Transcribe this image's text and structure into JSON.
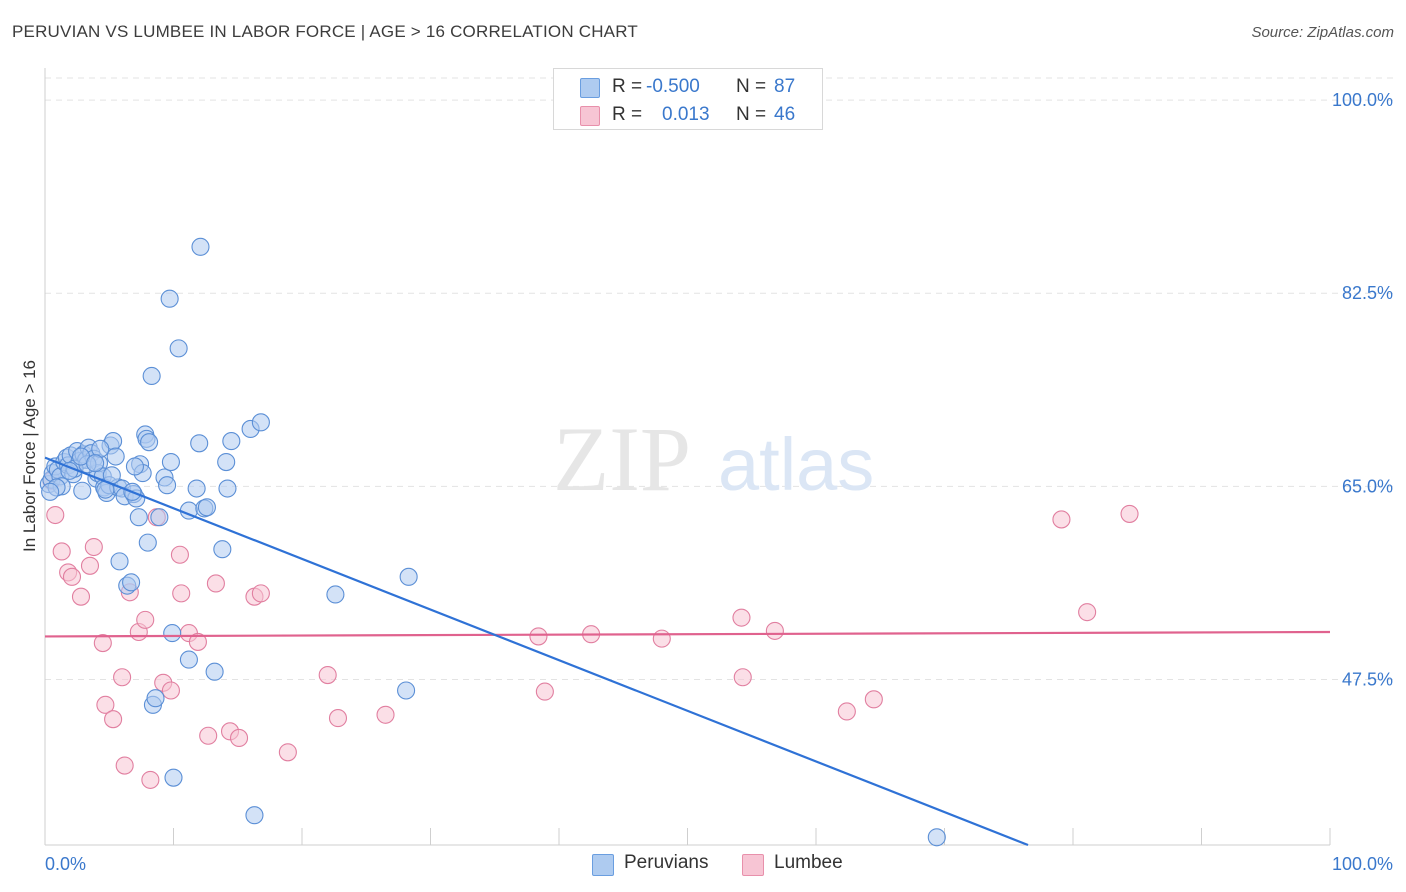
{
  "title": "PERUVIAN VS LUMBEE IN LABOR FORCE | AGE > 16 CORRELATION CHART",
  "source": "Source: ZipAtlas.com",
  "watermark": {
    "zip": "ZIP",
    "atlas": "atlas"
  },
  "stats": [
    {
      "r_label": "R =",
      "r_value": "-0.500",
      "n_label": "N =",
      "n_value": "87",
      "color": "#aecbf0",
      "border": "#6a9ee0"
    },
    {
      "r_label": "R =",
      "r_value": "0.013",
      "n_label": "N =",
      "n_value": "46",
      "color": "#f7c5d4",
      "border": "#e890ab"
    }
  ],
  "legend": [
    {
      "label": "Peruvians",
      "color": "#aecbf0",
      "border": "#6a9ee0"
    },
    {
      "label": "Lumbee",
      "color": "#f7c5d4",
      "border": "#e890ab"
    }
  ],
  "chart_data": {
    "type": "scatter",
    "title": "PERUVIAN VS LUMBEE IN LABOR FORCE | AGE > 16 CORRELATION CHART",
    "xlabel": "",
    "ylabel": "In Labor Force | Age > 16",
    "xlim": [
      0,
      100
    ],
    "ylim": [
      32.5,
      102
    ],
    "x_tick_labels": [
      "0.0%",
      "100.0%"
    ],
    "y_ticks": [
      47.5,
      65.0,
      82.5,
      100.0
    ],
    "y_tick_labels": [
      "47.5%",
      "65.0%",
      "82.5%",
      "100.0%"
    ],
    "grid": "horizontal dashed",
    "colors": {
      "peruvians_fill": "#aecbf0",
      "peruvians_edge": "#5b8fd6",
      "peruvians_line": "#2f72d6",
      "lumbee_fill": "#f7c5d4",
      "lumbee_edge": "#e17fa0",
      "lumbee_line": "#e0628e",
      "tick_label": "#3a78cc"
    },
    "series": [
      {
        "name": "Peruvians",
        "regression": {
          "x": [
            0,
            76.5
          ],
          "y": [
            67.6,
            32.5
          ]
        },
        "points": [
          [
            0.3,
            65.2
          ],
          [
            0.5,
            65.6
          ],
          [
            0.6,
            66.2
          ],
          [
            0.8,
            66.8
          ],
          [
            1.0,
            66.5
          ],
          [
            1.2,
            65.9
          ],
          [
            1.5,
            67.2
          ],
          [
            1.7,
            67.6
          ],
          [
            1.8,
            66.9
          ],
          [
            2.0,
            67.8
          ],
          [
            2.2,
            66.1
          ],
          [
            2.5,
            68.2
          ],
          [
            2.7,
            67.3
          ],
          [
            2.9,
            64.6
          ],
          [
            3.0,
            67.9
          ],
          [
            3.2,
            67.4
          ],
          [
            3.4,
            68.5
          ],
          [
            3.6,
            68.0
          ],
          [
            3.8,
            67.5
          ],
          [
            4.0,
            65.7
          ],
          [
            4.1,
            66.2
          ],
          [
            4.2,
            67.1
          ],
          [
            4.5,
            65.9
          ],
          [
            4.6,
            64.9
          ],
          [
            4.8,
            64.4
          ],
          [
            5.0,
            65.1
          ],
          [
            5.1,
            68.7
          ],
          [
            5.3,
            69.1
          ],
          [
            5.5,
            67.7
          ],
          [
            5.7,
            64.9
          ],
          [
            5.8,
            58.2
          ],
          [
            6.0,
            64.8
          ],
          [
            6.2,
            64.1
          ],
          [
            6.4,
            56.0
          ],
          [
            6.7,
            56.3
          ],
          [
            6.9,
            64.3
          ],
          [
            7.1,
            63.9
          ],
          [
            7.3,
            62.2
          ],
          [
            7.4,
            67.0
          ],
          [
            7.6,
            66.2
          ],
          [
            7.8,
            69.7
          ],
          [
            7.9,
            69.3
          ],
          [
            8.0,
            59.9
          ],
          [
            8.1,
            69.0
          ],
          [
            8.4,
            45.2
          ],
          [
            8.6,
            45.8
          ],
          [
            8.9,
            62.2
          ],
          [
            9.3,
            65.8
          ],
          [
            9.5,
            65.1
          ],
          [
            9.8,
            67.2
          ],
          [
            9.9,
            51.7
          ],
          [
            10.0,
            38.6
          ],
          [
            9.7,
            82.0
          ],
          [
            10.4,
            77.5
          ],
          [
            8.3,
            75.0
          ],
          [
            11.2,
            49.3
          ],
          [
            11.2,
            62.8
          ],
          [
            11.8,
            64.8
          ],
          [
            12.0,
            68.9
          ],
          [
            12.1,
            86.7
          ],
          [
            12.4,
            63.0
          ],
          [
            12.6,
            63.1
          ],
          [
            13.2,
            48.2
          ],
          [
            13.8,
            59.3
          ],
          [
            14.1,
            67.2
          ],
          [
            14.2,
            64.8
          ],
          [
            14.5,
            69.1
          ],
          [
            16.0,
            70.2
          ],
          [
            16.3,
            35.2
          ],
          [
            16.8,
            70.8
          ],
          [
            22.6,
            55.2
          ],
          [
            28.3,
            56.8
          ],
          [
            28.1,
            46.5
          ],
          [
            69.4,
            33.2
          ],
          [
            1.3,
            65.0
          ],
          [
            2.3,
            66.6
          ],
          [
            3.3,
            67.0
          ],
          [
            4.3,
            68.4
          ],
          [
            5.2,
            66.0
          ],
          [
            6.8,
            64.5
          ],
          [
            7.0,
            66.8
          ],
          [
            0.9,
            64.9
          ],
          [
            1.9,
            66.4
          ],
          [
            2.8,
            67.7
          ],
          [
            3.9,
            67.1
          ],
          [
            4.7,
            64.7
          ],
          [
            0.4,
            64.5
          ]
        ]
      },
      {
        "name": "Lumbee",
        "regression": {
          "x": [
            0,
            100
          ],
          "y": [
            51.4,
            51.8
          ]
        },
        "points": [
          [
            0.8,
            62.4
          ],
          [
            1.3,
            59.1
          ],
          [
            1.8,
            57.2
          ],
          [
            2.1,
            56.8
          ],
          [
            2.8,
            55.0
          ],
          [
            3.5,
            57.8
          ],
          [
            3.8,
            59.5
          ],
          [
            4.5,
            50.8
          ],
          [
            4.7,
            45.2
          ],
          [
            5.3,
            43.9
          ],
          [
            6.0,
            47.7
          ],
          [
            6.2,
            39.7
          ],
          [
            6.6,
            55.4
          ],
          [
            7.3,
            51.8
          ],
          [
            7.8,
            52.9
          ],
          [
            8.2,
            38.4
          ],
          [
            8.7,
            62.2
          ],
          [
            9.2,
            47.2
          ],
          [
            9.8,
            46.5
          ],
          [
            10.5,
            58.8
          ],
          [
            10.6,
            55.3
          ],
          [
            11.2,
            51.7
          ],
          [
            11.9,
            50.9
          ],
          [
            12.7,
            42.4
          ],
          [
            13.3,
            56.2
          ],
          [
            14.4,
            42.8
          ],
          [
            15.1,
            42.2
          ],
          [
            16.3,
            55.0
          ],
          [
            16.8,
            55.3
          ],
          [
            18.9,
            40.9
          ],
          [
            22.0,
            47.9
          ],
          [
            22.8,
            44.0
          ],
          [
            26.5,
            44.3
          ],
          [
            38.4,
            51.4
          ],
          [
            38.9,
            46.4
          ],
          [
            42.5,
            51.6
          ],
          [
            48.0,
            51.2
          ],
          [
            54.2,
            53.1
          ],
          [
            54.3,
            47.7
          ],
          [
            56.8,
            51.9
          ],
          [
            62.4,
            44.6
          ],
          [
            64.5,
            45.7
          ],
          [
            79.1,
            62.0
          ],
          [
            81.1,
            53.6
          ],
          [
            84.4,
            62.5
          ],
          [
            0.5,
            65.5
          ]
        ]
      }
    ]
  }
}
